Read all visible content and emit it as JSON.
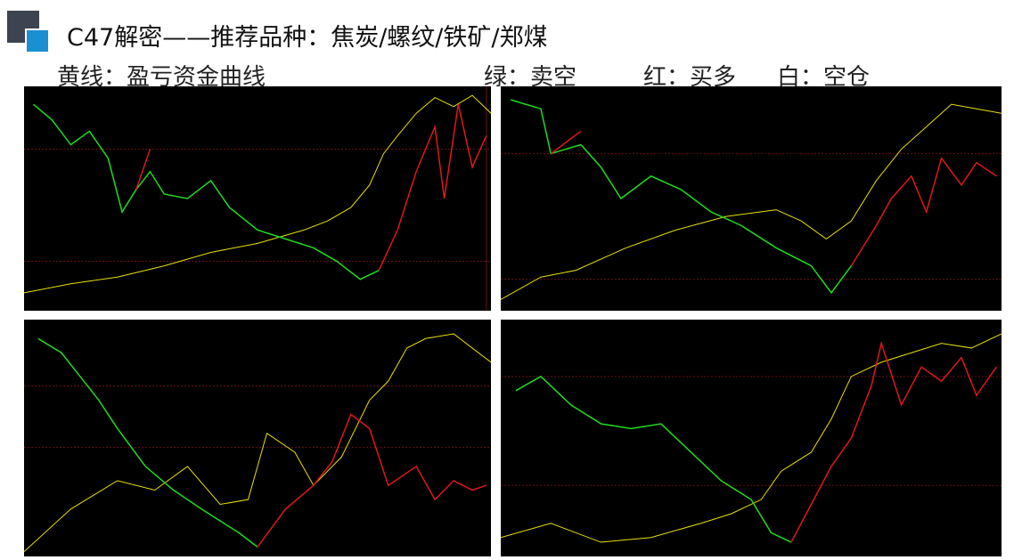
{
  "header": {
    "title": "C47解密——推荐品种：焦炭/螺纹/铁矿/郑煤"
  },
  "legend": {
    "items": [
      "黄线：盈亏资金曲线",
      "绿：卖空",
      "红：买多",
      "白：空仓"
    ]
  }
}
